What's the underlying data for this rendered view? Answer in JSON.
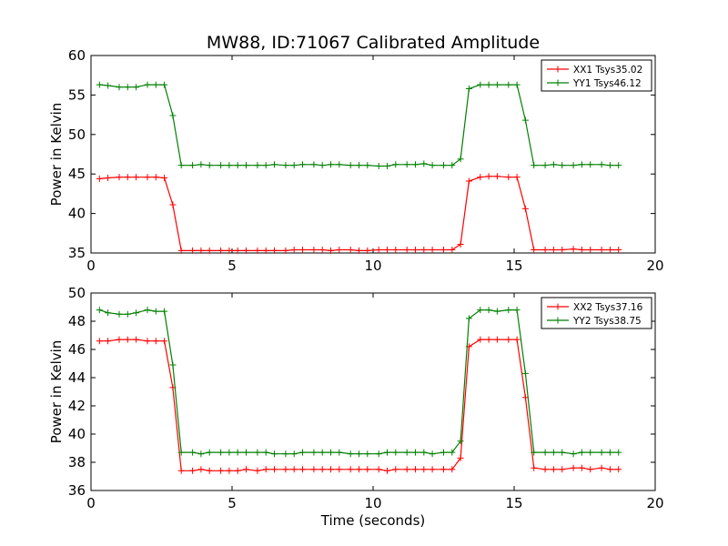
{
  "chart_data": [
    {
      "type": "line",
      "title": "MW88, ID:71067 Calibrated Amplitude",
      "xlabel": "",
      "ylabel": "Power in Kelvin",
      "xlim": [
        0,
        20
      ],
      "ylim": [
        35,
        60
      ],
      "xticks": [
        "0",
        "5",
        "10",
        "15",
        "20"
      ],
      "yticks": [
        "35",
        "40",
        "45",
        "50",
        "55",
        "60"
      ],
      "legend_position": "top-right",
      "x": [
        0.3,
        0.6,
        1.0,
        1.3,
        1.6,
        2.0,
        2.3,
        2.6,
        2.9,
        3.2,
        3.6,
        3.9,
        4.2,
        4.6,
        4.9,
        5.2,
        5.5,
        5.9,
        6.2,
        6.5,
        6.9,
        7.2,
        7.5,
        7.9,
        8.2,
        8.5,
        8.8,
        9.2,
        9.5,
        9.8,
        10.2,
        10.5,
        10.8,
        11.2,
        11.5,
        11.8,
        12.1,
        12.5,
        12.8,
        13.1,
        13.4,
        13.8,
        14.1,
        14.4,
        14.8,
        15.1,
        15.4,
        15.7,
        16.1,
        16.4,
        16.7,
        17.1,
        17.4,
        17.7,
        18.1,
        18.4,
        18.7
      ],
      "series": [
        {
          "name": "XX1 Tsys35.02",
          "color": "#ff0000",
          "values": [
            44.4,
            44.5,
            44.6,
            44.6,
            44.6,
            44.6,
            44.6,
            44.5,
            41.1,
            35.3,
            35.3,
            35.3,
            35.3,
            35.3,
            35.3,
            35.3,
            35.3,
            35.3,
            35.3,
            35.3,
            35.3,
            35.4,
            35.4,
            35.4,
            35.4,
            35.3,
            35.4,
            35.4,
            35.3,
            35.3,
            35.4,
            35.4,
            35.4,
            35.4,
            35.4,
            35.4,
            35.4,
            35.4,
            35.4,
            36.1,
            44.1,
            44.6,
            44.7,
            44.7,
            44.6,
            44.6,
            40.6,
            35.4,
            35.4,
            35.4,
            35.4,
            35.5,
            35.4,
            35.4,
            35.4,
            35.4,
            35.4
          ]
        },
        {
          "name": "YY1 Tsys46.12",
          "color": "#008000",
          "values": [
            56.3,
            56.2,
            56.0,
            56.0,
            56.0,
            56.3,
            56.3,
            56.3,
            52.4,
            46.1,
            46.1,
            46.2,
            46.1,
            46.1,
            46.1,
            46.1,
            46.1,
            46.1,
            46.1,
            46.2,
            46.1,
            46.1,
            46.2,
            46.2,
            46.1,
            46.2,
            46.2,
            46.1,
            46.1,
            46.1,
            46.0,
            46.0,
            46.2,
            46.2,
            46.2,
            46.3,
            46.1,
            46.1,
            46.1,
            46.9,
            55.8,
            56.3,
            56.3,
            56.3,
            56.3,
            56.3,
            51.8,
            46.1,
            46.1,
            46.2,
            46.1,
            46.1,
            46.2,
            46.2,
            46.2,
            46.1,
            46.1
          ]
        }
      ]
    },
    {
      "type": "line",
      "title": "",
      "xlabel": "Time (seconds)",
      "ylabel": "Power in Kelvin",
      "xlim": [
        0,
        20
      ],
      "ylim": [
        36,
        50
      ],
      "xticks": [
        "0",
        "5",
        "10",
        "15",
        "20"
      ],
      "yticks": [
        "36",
        "38",
        "40",
        "42",
        "44",
        "46",
        "48",
        "50"
      ],
      "legend_position": "top-right",
      "x": [
        0.3,
        0.6,
        1.0,
        1.3,
        1.6,
        2.0,
        2.3,
        2.6,
        2.9,
        3.2,
        3.6,
        3.9,
        4.2,
        4.6,
        4.9,
        5.2,
        5.5,
        5.9,
        6.2,
        6.5,
        6.9,
        7.2,
        7.5,
        7.9,
        8.2,
        8.5,
        8.8,
        9.2,
        9.5,
        9.8,
        10.2,
        10.5,
        10.8,
        11.2,
        11.5,
        11.8,
        12.1,
        12.5,
        12.8,
        13.1,
        13.4,
        13.8,
        14.1,
        14.4,
        14.8,
        15.1,
        15.4,
        15.7,
        16.1,
        16.4,
        16.7,
        17.1,
        17.4,
        17.7,
        18.1,
        18.4,
        18.7
      ],
      "series": [
        {
          "name": "XX2 Tsys37.16",
          "color": "#ff0000",
          "values": [
            46.6,
            46.6,
            46.7,
            46.7,
            46.7,
            46.6,
            46.6,
            46.6,
            43.3,
            37.4,
            37.4,
            37.5,
            37.4,
            37.4,
            37.4,
            37.4,
            37.5,
            37.4,
            37.5,
            37.5,
            37.5,
            37.5,
            37.5,
            37.5,
            37.5,
            37.5,
            37.5,
            37.5,
            37.5,
            37.5,
            37.5,
            37.4,
            37.5,
            37.5,
            37.5,
            37.5,
            37.5,
            37.5,
            37.5,
            38.3,
            46.2,
            46.7,
            46.7,
            46.7,
            46.7,
            46.7,
            42.6,
            37.6,
            37.5,
            37.5,
            37.5,
            37.6,
            37.6,
            37.5,
            37.6,
            37.5,
            37.5
          ]
        },
        {
          "name": "YY2 Tsys38.75",
          "color": "#008000",
          "values": [
            48.8,
            48.6,
            48.5,
            48.5,
            48.6,
            48.8,
            48.7,
            48.7,
            44.9,
            38.7,
            38.7,
            38.6,
            38.7,
            38.7,
            38.7,
            38.7,
            38.7,
            38.7,
            38.7,
            38.6,
            38.6,
            38.6,
            38.7,
            38.7,
            38.7,
            38.7,
            38.7,
            38.6,
            38.6,
            38.6,
            38.6,
            38.7,
            38.7,
            38.7,
            38.7,
            38.7,
            38.6,
            38.7,
            38.7,
            39.5,
            48.2,
            48.8,
            48.8,
            48.7,
            48.8,
            48.8,
            44.3,
            38.7,
            38.7,
            38.7,
            38.7,
            38.6,
            38.7,
            38.7,
            38.7,
            38.7,
            38.7
          ]
        }
      ]
    }
  ]
}
